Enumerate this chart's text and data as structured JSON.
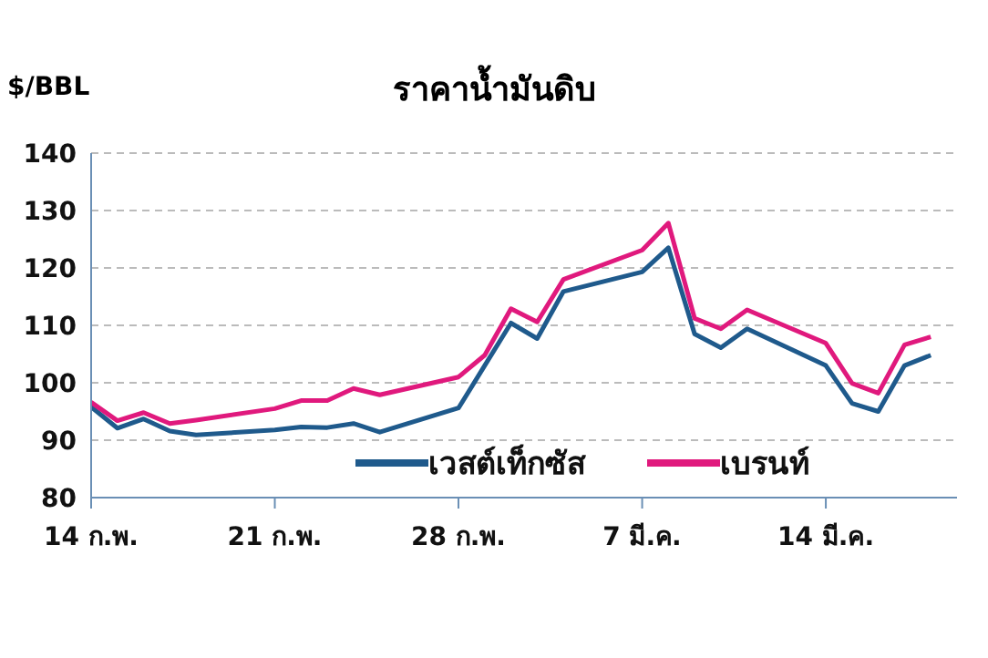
{
  "chart_data": {
    "type": "line",
    "title": "ราคาน้ำมันดิบ",
    "ylabel": "$/BBL",
    "x": [
      "--02-14",
      "--02-15",
      "--02-16",
      "--02-17",
      "--02-18",
      "--02-21",
      "--02-22",
      "--02-23",
      "--02-24",
      "--02-25",
      "--02-28",
      "--03-01",
      "--03-02",
      "--03-03",
      "--03-04",
      "--03-07",
      "--03-08",
      "--03-09",
      "--03-10",
      "--03-11",
      "--03-14",
      "--03-15",
      "--03-16",
      "--03-17",
      "--03-18"
    ],
    "series": [
      {
        "name": "เวสต์เท็กซัส",
        "color": "#1f5a8c",
        "values": [
          95.8,
          92.1,
          93.7,
          91.6,
          90.9,
          91.8,
          92.3,
          92.2,
          92.9,
          91.4,
          95.6,
          103,
          110.4,
          107.7,
          115.9,
          119.3,
          123.5,
          108.5,
          106.1,
          109.4,
          103,
          96.4,
          95,
          103,
          104.8
        ]
      },
      {
        "name": "เบรนท์",
        "color": "#e0197d",
        "values": [
          96.6,
          93.4,
          94.8,
          92.9,
          93.5,
          95.5,
          96.9,
          96.9,
          99,
          97.9,
          101,
          104.8,
          112.9,
          110.6,
          118,
          123.1,
          127.8,
          111.2,
          109.4,
          112.7,
          106.9,
          99.9,
          98.2,
          106.6,
          108
        ]
      }
    ],
    "xlim": [
      "--02-14",
      "--03-19"
    ],
    "xticks": [
      {
        "value": "--02-14",
        "label": "14 ก.พ."
      },
      {
        "value": "--02-21",
        "label": "21 ก.พ."
      },
      {
        "value": "--02-28",
        "label": "28 ก.พ."
      },
      {
        "value": "--03-07",
        "label": "7 มี.ค."
      },
      {
        "value": "--03-14",
        "label": "14 มี.ค."
      }
    ],
    "ylim": [
      80,
      140
    ],
    "yticks": [
      80,
      90,
      100,
      110,
      120,
      130,
      140
    ],
    "grid": "y",
    "legend": "bottom right",
    "marker": "none",
    "line_style": "solid"
  }
}
